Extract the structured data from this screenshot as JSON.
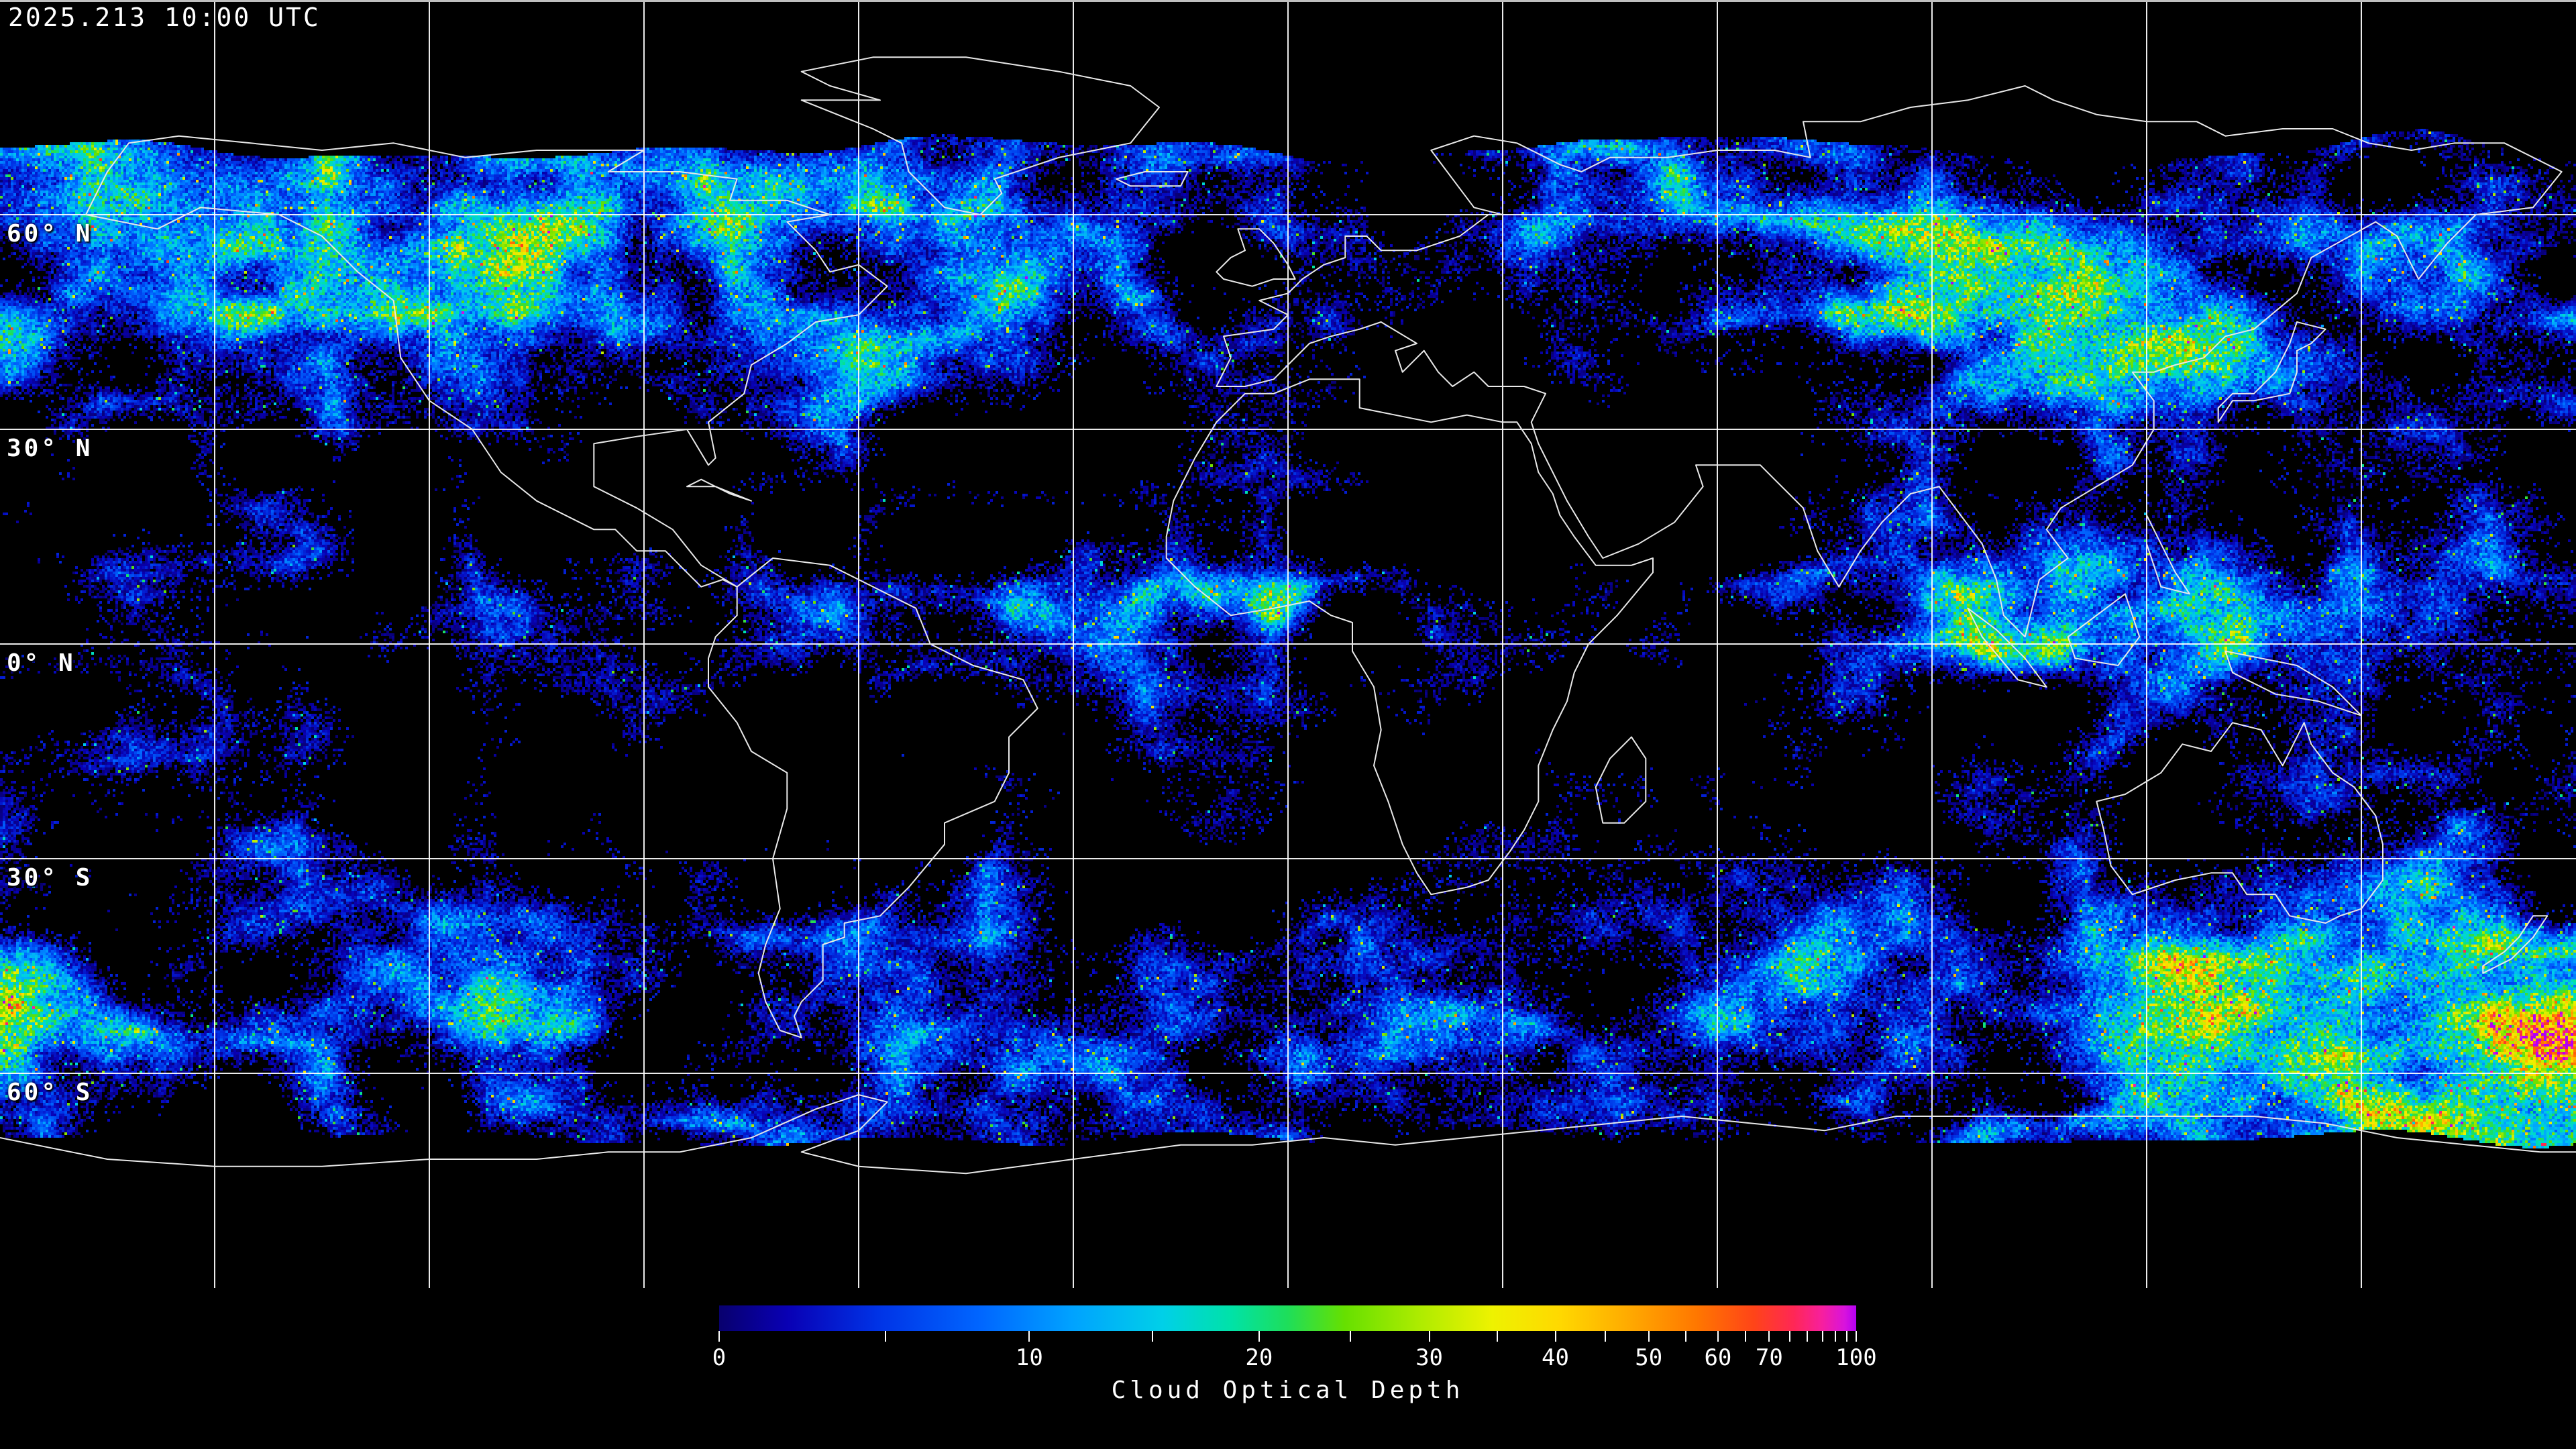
{
  "header": {
    "timestamp": "2025.213 10:00 UTC"
  },
  "map": {
    "background_color": "#000000",
    "grid": {
      "lon_step_deg": 30,
      "lat_step_deg": 30,
      "line_color": "#ffffff"
    },
    "lat_labels": [
      {
        "label": "60° N",
        "lat": 60
      },
      {
        "label": "30° N",
        "lat": 30
      },
      {
        "label": "0° N",
        "lat": 0
      },
      {
        "label": "30° S",
        "lat": -30
      },
      {
        "label": "60° S",
        "lat": -60
      }
    ],
    "coastline_color": "#e8e8e8",
    "data_extent": {
      "north_cutoff_lat": 70,
      "south_cutoff_lat": -68
    }
  },
  "colorbar": {
    "title": "Cloud Optical Depth",
    "major_ticks": [
      {
        "value": 0,
        "label": "0"
      },
      {
        "value": 10,
        "label": "10"
      },
      {
        "value": 20,
        "label": "20"
      },
      {
        "value": 30,
        "label": "30"
      },
      {
        "value": 40,
        "label": "40"
      },
      {
        "value": 50,
        "label": "50"
      },
      {
        "value": 60,
        "label": "60"
      },
      {
        "value": 70,
        "label": "70"
      },
      {
        "value": 100,
        "label": "100"
      }
    ],
    "minor_tick_step": 5,
    "scale": {
      "type": "exponential",
      "k": 0.03,
      "vmin": 0,
      "vmax": 100
    },
    "gradient_stops": [
      {
        "t": 0.0,
        "color": "#08006e"
      },
      {
        "t": 0.06,
        "color": "#0900b4"
      },
      {
        "t": 0.14,
        "color": "#0033e6"
      },
      {
        "t": 0.23,
        "color": "#0066ff"
      },
      {
        "t": 0.31,
        "color": "#00a2ff"
      },
      {
        "t": 0.39,
        "color": "#00d0e8"
      },
      {
        "t": 0.45,
        "color": "#00e2a8"
      },
      {
        "t": 0.5,
        "color": "#1ede5a"
      },
      {
        "t": 0.55,
        "color": "#66e000"
      },
      {
        "t": 0.62,
        "color": "#b2ec00"
      },
      {
        "t": 0.68,
        "color": "#eef200"
      },
      {
        "t": 0.74,
        "color": "#ffd800"
      },
      {
        "t": 0.8,
        "color": "#ffaa00"
      },
      {
        "t": 0.86,
        "color": "#ff7700"
      },
      {
        "t": 0.91,
        "color": "#ff4418"
      },
      {
        "t": 0.945,
        "color": "#ff2755"
      },
      {
        "t": 0.97,
        "color": "#f71f9e"
      },
      {
        "t": 0.99,
        "color": "#d813dd"
      },
      {
        "t": 1.0,
        "color": "#b400f2"
      }
    ]
  }
}
